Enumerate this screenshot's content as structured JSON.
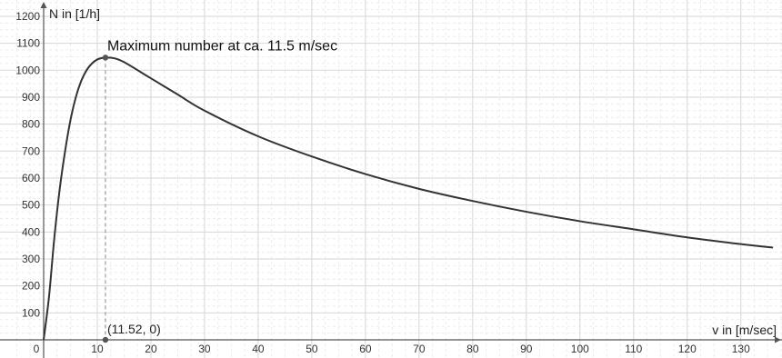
{
  "chart_data": {
    "type": "line",
    "title": "",
    "xlabel": "v in [m/sec]",
    "ylabel": "N in [1/h]",
    "xlim": [
      -8,
      136
    ],
    "ylim": [
      -5,
      1205
    ],
    "x_ticks": [
      0,
      10,
      20,
      30,
      40,
      50,
      60,
      70,
      80,
      90,
      100,
      110,
      120,
      130
    ],
    "y_ticks": [
      0,
      100,
      200,
      300,
      400,
      500,
      600,
      700,
      800,
      900,
      1000,
      1100,
      1200
    ],
    "grid": true,
    "series": [
      {
        "name": "",
        "x": [
          0,
          1,
          2,
          3,
          4,
          5,
          6,
          7,
          8,
          9,
          10,
          11,
          11.52,
          13,
          15,
          20,
          25,
          30,
          40,
          50,
          60,
          70,
          80,
          90,
          100,
          110,
          120,
          130,
          136
        ],
        "y": [
          0,
          160,
          380,
          560,
          700,
          815,
          900,
          960,
          1000,
          1025,
          1040,
          1046,
          1047,
          1045,
          1030,
          970,
          910,
          850,
          755,
          680,
          615,
          560,
          515,
          475,
          440,
          410,
          380,
          355,
          342
        ]
      }
    ],
    "points": [
      {
        "label": "",
        "x": 11.52,
        "y": 1047
      },
      {
        "label": "(11.52, 0)",
        "x": 11.52,
        "y": 0
      }
    ],
    "annotations": [
      {
        "text": "Maximum number at ca. 11.5 m/sec",
        "x": 11.52,
        "y": 1047
      }
    ],
    "colors": {
      "curve": "#333333",
      "grid_major": "#d6d6d6",
      "grid_minor": "#ececec",
      "axis": "#555555",
      "point": "#555555",
      "guide": "#888888"
    }
  }
}
